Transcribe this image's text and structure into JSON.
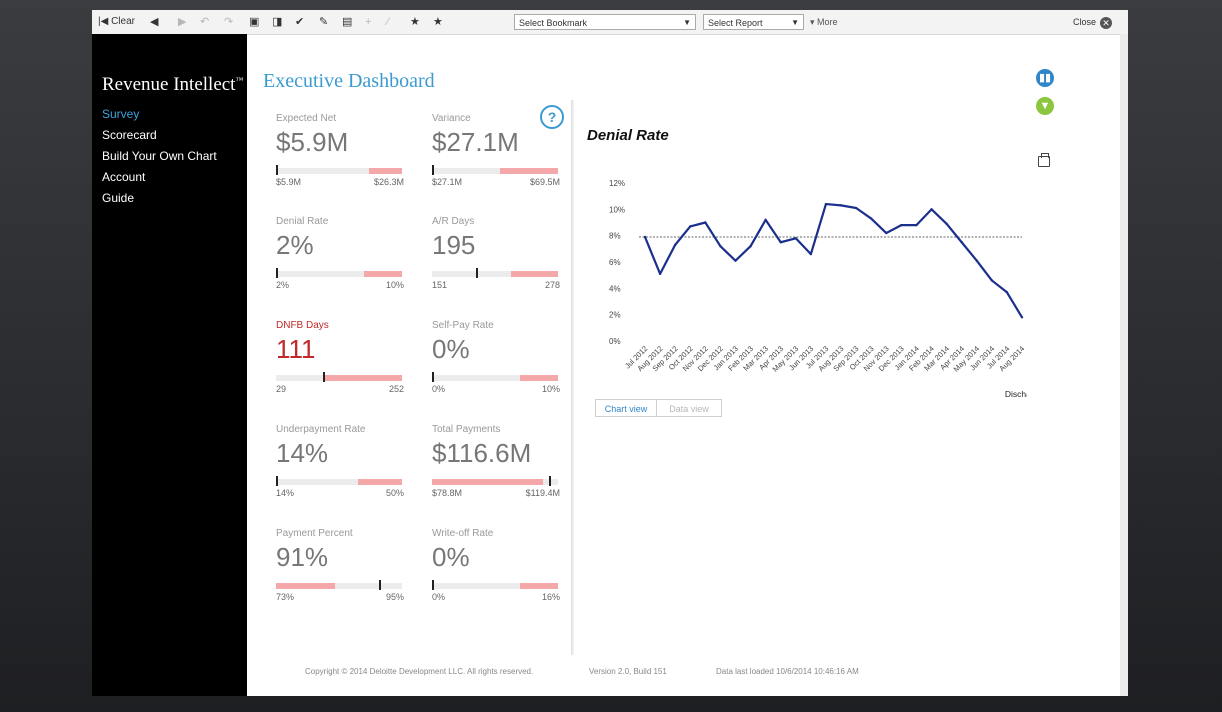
{
  "toolbar": {
    "clear_label": "Clear",
    "bookmark_select": "Select Bookmark",
    "report_select": "Select Report",
    "more_label": "More",
    "close_label": "Close"
  },
  "sidebar": {
    "brand": "Revenue Intellect",
    "brand_mark": "™",
    "items": [
      {
        "label": "Survey",
        "active": true
      },
      {
        "label": "Scorecard"
      },
      {
        "label": "Build Your Own Chart"
      },
      {
        "label": "Account"
      },
      {
        "label": "Guide"
      }
    ]
  },
  "main": {
    "title": "Executive Dashboard",
    "help_label": "?"
  },
  "metrics": [
    {
      "label": "Expected Net",
      "value": "$5.9M",
      "min": "$5.9M",
      "max": "$26.3M",
      "level": 0.0
    },
    {
      "label": "Variance",
      "value": "$27.1M",
      "min": "$27.1M",
      "max": "$69.5M",
      "level": 0.0
    },
    {
      "label": "Denial Rate",
      "value": "2%",
      "min": "2%",
      "max": "10%",
      "level": 0.0
    },
    {
      "label": "A/R Days",
      "value": "195",
      "min": "151",
      "max": "278",
      "level": 0.35
    },
    {
      "label": "DNFB Days",
      "value": "111",
      "min": "29",
      "max": "252",
      "level": 0.37,
      "alert": true
    },
    {
      "label": "Self-Pay Rate",
      "value": "0%",
      "min": "0%",
      "max": "10%",
      "level": 0.0
    },
    {
      "label": "Underpayment Rate",
      "value": "14%",
      "min": "14%",
      "max": "50%",
      "level": 0.0
    },
    {
      "label": "Total Payments",
      "value": "$116.6M",
      "min": "$78.8M",
      "max": "$119.4M",
      "level": 0.93
    },
    {
      "label": "Payment Percent",
      "value": "91%",
      "min": "73%",
      "max": "95%",
      "level": 0.82
    },
    {
      "label": "Write-off Rate",
      "value": "0%",
      "min": "0%",
      "max": "16%",
      "level": 0.0
    }
  ],
  "chart_data": {
    "type": "line",
    "title": "Denial Rate",
    "xlabel": "Discharge Month",
    "ylabel": "",
    "ylim": [
      0,
      12
    ],
    "yticks": [
      "0%",
      "2%",
      "4%",
      "6%",
      "8%",
      "10%",
      "12%"
    ],
    "reference_line": 7.9,
    "categories": [
      "Jul 2012",
      "Aug 2012",
      "Sep 2012",
      "Oct 2012",
      "Nov 2012",
      "Dec 2012",
      "Jan 2013",
      "Feb 2013",
      "Mar 2013",
      "Apr 2013",
      "May 2013",
      "Jun 2013",
      "Jul 2013",
      "Aug 2013",
      "Sep 2013",
      "Oct 2013",
      "Nov 2013",
      "Dec 2013",
      "Jan 2014",
      "Feb 2014",
      "Mar 2014",
      "Apr 2014",
      "May 2014",
      "Jun 2014",
      "Jul 2014",
      "Aug 2014"
    ],
    "values": [
      7.9,
      5.1,
      7.3,
      8.7,
      9.0,
      7.2,
      6.1,
      7.2,
      9.2,
      7.5,
      7.8,
      6.6,
      10.4,
      10.3,
      10.1,
      9.3,
      8.2,
      8.8,
      8.8,
      10.0,
      8.9,
      7.5,
      6.1,
      4.6,
      3.7,
      1.8
    ],
    "line_color": "#1b2f8c",
    "grid": false,
    "legend": "none"
  },
  "chart_tabs": {
    "chart_view": "Chart view",
    "data_view": "Data view"
  },
  "footer": {
    "copyright": "Copyright © 2014 Deloitte Development LLC. All rights reserved.",
    "version": "Version 2.0, Build 151",
    "loaded": "Data last loaded 10/6/2014 10:46:16 AM"
  },
  "colors": {
    "accent": "#3b9bd1",
    "alert": "#c0282a",
    "band": "#f4a8aa"
  },
  "icons": {
    "book": "book-icon",
    "filter": "filter-icon",
    "print": "print-icon"
  }
}
